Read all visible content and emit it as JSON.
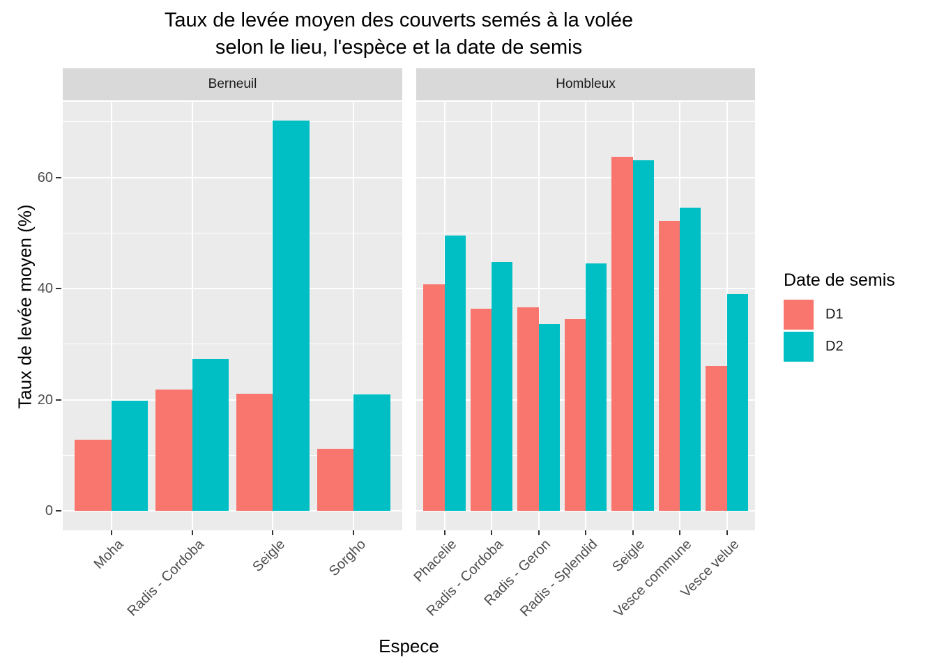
{
  "chart_data": {
    "type": "bar",
    "title_line1": "Taux de levée moyen des couverts semés à la volée",
    "title_line2": "selon le lieu, l'espèce et la date de semis",
    "xlabel": "Espece",
    "ylabel": "Taux de levée moyen (%)",
    "ylim": [
      0,
      73.6
    ],
    "yticks": [
      0,
      20,
      40,
      60
    ],
    "yminor": [
      10,
      30,
      50,
      70
    ],
    "grid": "on",
    "legend_position": "right",
    "panel_background": "#EBEBEB",
    "strip_background": "#D9D9D9",
    "gridline_color": "#FFFFFF",
    "legend": {
      "title": "Date de semis",
      "entries": [
        {
          "label": "D1",
          "color": "#F8766D"
        },
        {
          "label": "D2",
          "color": "#00BFC4"
        }
      ]
    },
    "facets": [
      {
        "label": "Berneuil",
        "categories": [
          "Moha",
          "Radis - Cordoba",
          "Seigle",
          "Sorgho"
        ],
        "series": [
          {
            "name": "D1",
            "values": [
              12.8,
              21.8,
              21.1,
              11.1
            ]
          },
          {
            "name": "D2",
            "values": [
              19.8,
              27.3,
              70.2,
              21.0
            ]
          }
        ]
      },
      {
        "label": "Hombleux",
        "categories": [
          "Phacelie",
          "Radis - Cordoba",
          "Radis - Geron",
          "Radis - Splendid",
          "Seigle",
          "Vesce commune",
          "Vesce velue"
        ],
        "series": [
          {
            "name": "D1",
            "values": [
              40.8,
              36.4,
              36.6,
              34.5,
              63.7,
              52.2,
              26.1
            ]
          },
          {
            "name": "D2",
            "values": [
              49.5,
              44.8,
              33.6,
              44.5,
              63.1,
              54.5,
              39.0
            ]
          }
        ]
      }
    ]
  }
}
